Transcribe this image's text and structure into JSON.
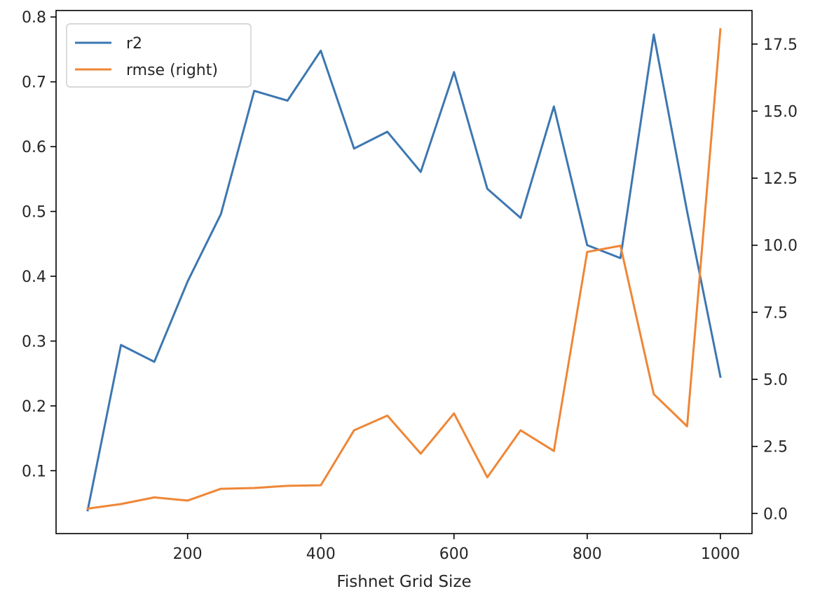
{
  "chart_data": {
    "type": "line",
    "title": "",
    "xlabel": "Fishnet Grid Size",
    "ylabel": "",
    "ylabel_right": "",
    "x": [
      50,
      100,
      150,
      200,
      250,
      300,
      350,
      400,
      450,
      500,
      550,
      600,
      650,
      700,
      750,
      800,
      850,
      900,
      950,
      1000
    ],
    "xlim": [
      2.5,
      1047.5
    ],
    "xticks": [
      200,
      400,
      600,
      800,
      1000
    ],
    "ylim": [
      0.003,
      0.81
    ],
    "yticks": [
      0.1,
      0.2,
      0.3,
      0.4,
      0.5,
      0.6,
      0.7,
      0.8
    ],
    "ylim_right": [
      -0.75,
      18.75
    ],
    "yticks_right": [
      0.0,
      2.5,
      5.0,
      7.5,
      10.0,
      12.5,
      15.0,
      17.5
    ],
    "grid": false,
    "legend_position": "upper left",
    "series": [
      {
        "name": "r2",
        "axis": "left",
        "color": "#3d77b0",
        "values": [
          0.039,
          0.294,
          0.268,
          0.392,
          0.496,
          0.686,
          0.671,
          0.748,
          0.597,
          0.623,
          0.561,
          0.715,
          0.535,
          0.49,
          0.662,
          0.448,
          0.428,
          0.773,
          0.5,
          0.245
        ]
      },
      {
        "name": "rmse (right)",
        "axis": "right",
        "color": "#ef8636",
        "values": [
          0.18,
          0.35,
          0.6,
          0.48,
          0.92,
          0.95,
          1.03,
          1.05,
          3.1,
          3.65,
          2.23,
          3.73,
          1.35,
          3.1,
          2.33,
          9.75,
          9.98,
          4.45,
          3.25,
          18.05
        ]
      }
    ]
  }
}
